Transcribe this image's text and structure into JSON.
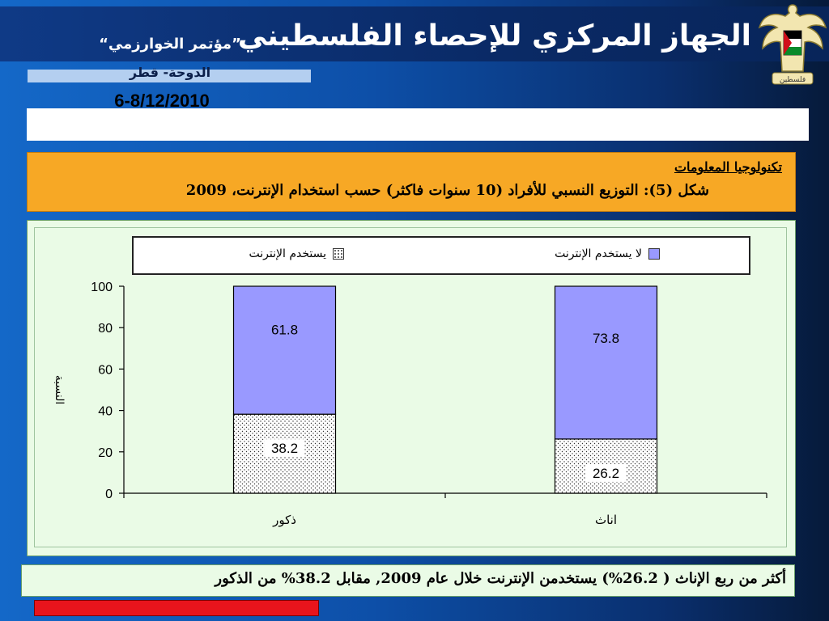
{
  "header": {
    "title": "الجهاز المركزي للإحصاء الفلسطيني",
    "conference_name": "”مؤتمر الخوارزمي“",
    "conference_place": "الدوحة- قطر",
    "conference_date": "6-8/12/2010",
    "emblem_text": "فلسطين"
  },
  "section": {
    "title": "تكنولوجيا المعلومات",
    "caption": "شكل (5): التوزيع النسبي للأفراد (10 سنوات فاكثر) حسب استخدام الإنترنت، 2009"
  },
  "conclusion": "أكثر من ربع الإناث ( 26.2%) يستخدمن الإنترنت خلال عام 2009, مقابل 38.2% من الذكور",
  "colors": {
    "non_users": "#9999ff",
    "users": "#ffffff",
    "accent_orange": "#f7a825",
    "accent_red": "#e8141c"
  },
  "chart_data": {
    "type": "bar",
    "stacked": true,
    "categories": [
      "ذكور",
      "اناث"
    ],
    "series": [
      {
        "name": "يستخدم الإنترنت",
        "values": [
          38.2,
          26.2
        ],
        "pattern": "dotted"
      },
      {
        "name": "لا يستخدم الإنترنت",
        "values": [
          61.8,
          73.8
        ],
        "color": "#9999ff"
      }
    ],
    "ylabel": "النسبة",
    "xlabel": "",
    "ylim": [
      0,
      100
    ],
    "yticks": [
      0,
      20,
      40,
      60,
      80,
      100
    ],
    "legend_position": "top",
    "grid": false
  }
}
